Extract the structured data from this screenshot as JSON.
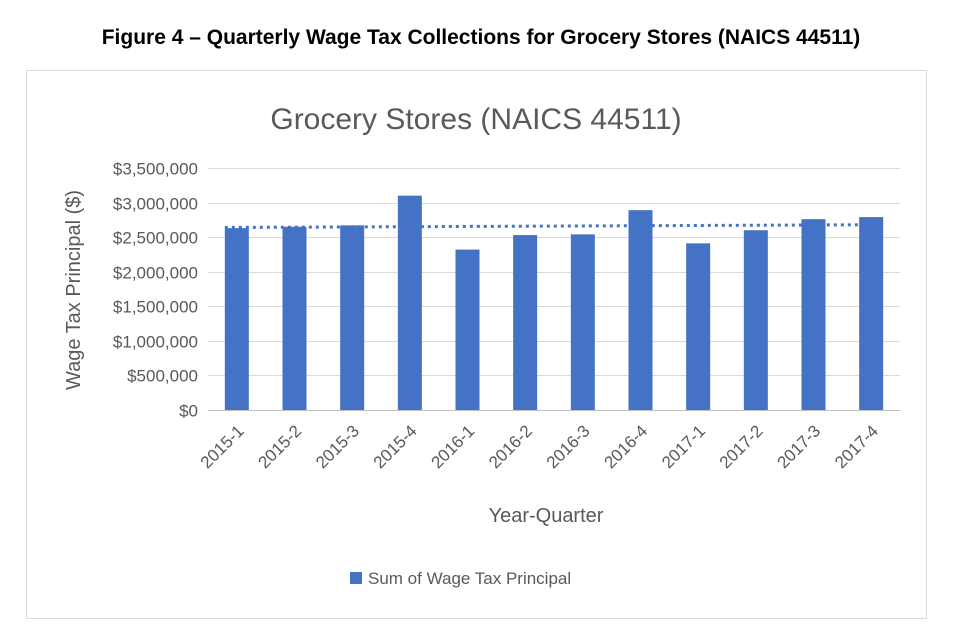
{
  "figure_title": "Figure 4 – Quarterly Wage Tax Collections for Grocery Stores (NAICS 44511)",
  "chart_data": {
    "type": "bar",
    "title": "Grocery Stores (NAICS 44511)",
    "xlabel": "Year-Quarter",
    "ylabel": "Wage Tax Principal ($)",
    "categories": [
      "2015-1",
      "2015-2",
      "2015-3",
      "2015-4",
      "2016-1",
      "2016-2",
      "2016-3",
      "2016-4",
      "2017-1",
      "2017-2",
      "2017-3",
      "2017-4"
    ],
    "series": [
      {
        "name": "Sum of Wage Tax Principal",
        "color": "#4472c4",
        "values": [
          2630000,
          2650000,
          2670000,
          3100000,
          2320000,
          2530000,
          2540000,
          2890000,
          2410000,
          2600000,
          2760000,
          2790000
        ]
      }
    ],
    "trendline": {
      "type": "linear",
      "style": "dotted",
      "color": "#4472c4",
      "start": 2640000,
      "end": 2680000
    },
    "ylim": [
      0,
      3500000
    ],
    "yticks": [
      0,
      500000,
      1000000,
      1500000,
      2000000,
      2500000,
      3000000,
      3500000
    ],
    "ytick_labels": [
      "$0",
      "$500,000",
      "$1,000,000",
      "$1,500,000",
      "$2,000,000",
      "$2,500,000",
      "$3,000,000",
      "$3,500,000"
    ],
    "grid": true,
    "legend_position": "bottom"
  }
}
